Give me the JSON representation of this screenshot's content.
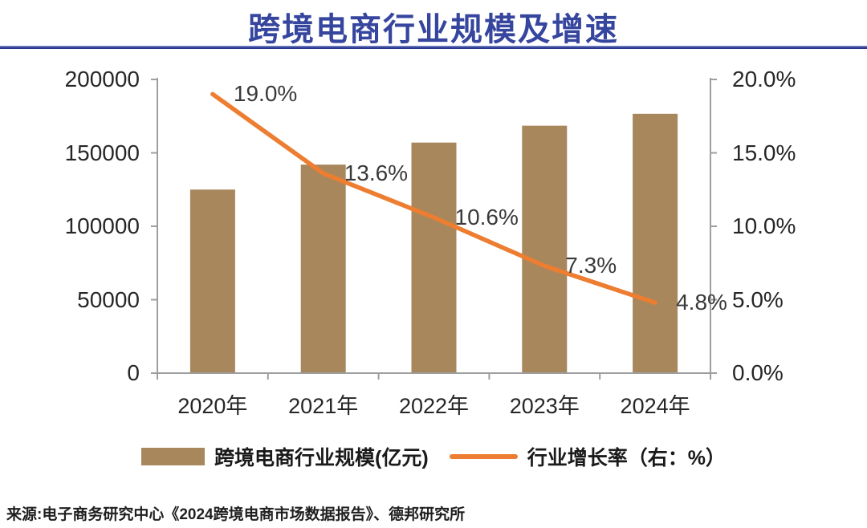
{
  "header": {
    "title": "跨境电商行业规模及增速"
  },
  "legend": {
    "bar_label": "跨境电商行业规模(亿元)",
    "line_label": "行业增长率（右：%）"
  },
  "footer": {
    "source": "来源:电子商务研究中心《2024跨境电商市场数据报告》、德邦研究所"
  },
  "colors": {
    "bar": "#A8875D",
    "line": "#ED7D31",
    "title": "#36459E",
    "axis": "#9E9E9E",
    "divider": "#2C3A8C",
    "tick_label": "#262626",
    "point_label": "#3a3a3a"
  },
  "chart_data": {
    "type": "bar",
    "subtype": "bar-line-combo",
    "title": "跨境电商行业规模及增速",
    "categories": [
      "2020年",
      "2021年",
      "2022年",
      "2023年",
      "2024年"
    ],
    "series": [
      {
        "name": "跨境电商行业规模(亿元)",
        "type": "bar",
        "axis": "left",
        "values": [
          125000,
          142000,
          157000,
          168500,
          176600
        ]
      },
      {
        "name": "行业增长率（右：%）",
        "type": "line",
        "axis": "right",
        "values": [
          19.0,
          13.6,
          10.6,
          7.3,
          4.8
        ],
        "point_labels": [
          "19.0%",
          "13.6%",
          "10.6%",
          "7.3%",
          "4.8%"
        ]
      }
    ],
    "left_axis": {
      "range": [
        0,
        200000
      ],
      "ticks": [
        "200000",
        "150000",
        "100000",
        "50000",
        "0"
      ]
    },
    "right_axis": {
      "range": [
        0,
        20
      ],
      "ticks": [
        "20.0%",
        "15.0%",
        "10.0%",
        "5.0%",
        "0.0%"
      ]
    },
    "grid": false,
    "legend_position": "bottom"
  }
}
